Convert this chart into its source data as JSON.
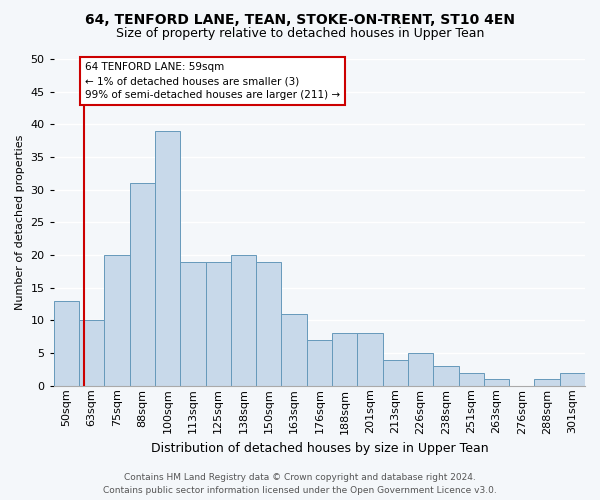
{
  "title1": "64, TENFORD LANE, TEAN, STOKE-ON-TRENT, ST10 4EN",
  "title2": "Size of property relative to detached houses in Upper Tean",
  "xlabel": "Distribution of detached houses by size in Upper Tean",
  "ylabel": "Number of detached properties",
  "bar_labels": [
    "50sqm",
    "63sqm",
    "75sqm",
    "88sqm",
    "100sqm",
    "113sqm",
    "125sqm",
    "138sqm",
    "150sqm",
    "163sqm",
    "176sqm",
    "188sqm",
    "201sqm",
    "213sqm",
    "226sqm",
    "238sqm",
    "251sqm",
    "263sqm",
    "276sqm",
    "288sqm",
    "301sqm"
  ],
  "bar_heights": [
    13,
    10,
    20,
    31,
    39,
    19,
    19,
    20,
    19,
    11,
    7,
    8,
    8,
    4,
    5,
    3,
    2,
    1,
    0,
    1,
    2
  ],
  "bar_color": "#c8d9ea",
  "bar_edge_color": "#6699bb",
  "annotation_box_text": "64 TENFORD LANE: 59sqm\n← 1% of detached houses are smaller (3)\n99% of semi-detached houses are larger (211) →",
  "ylim": [
    0,
    50
  ],
  "yticks": [
    0,
    5,
    10,
    15,
    20,
    25,
    30,
    35,
    40,
    45,
    50
  ],
  "footer_line1": "Contains HM Land Registry data © Crown copyright and database right 2024.",
  "footer_line2": "Contains public sector information licensed under the Open Government Licence v3.0.",
  "bg_color": "#f4f7fa",
  "plot_bg_color": "#f4f7fa",
  "grid_color": "#ffffff",
  "annotation_box_color": "#ffffff",
  "annotation_box_edge": "#cc0000",
  "marker_line_color": "#cc0000",
  "title1_fontsize": 10,
  "title2_fontsize": 9,
  "ylabel_fontsize": 8,
  "xlabel_fontsize": 9,
  "tick_fontsize": 8,
  "footer_fontsize": 6.5
}
